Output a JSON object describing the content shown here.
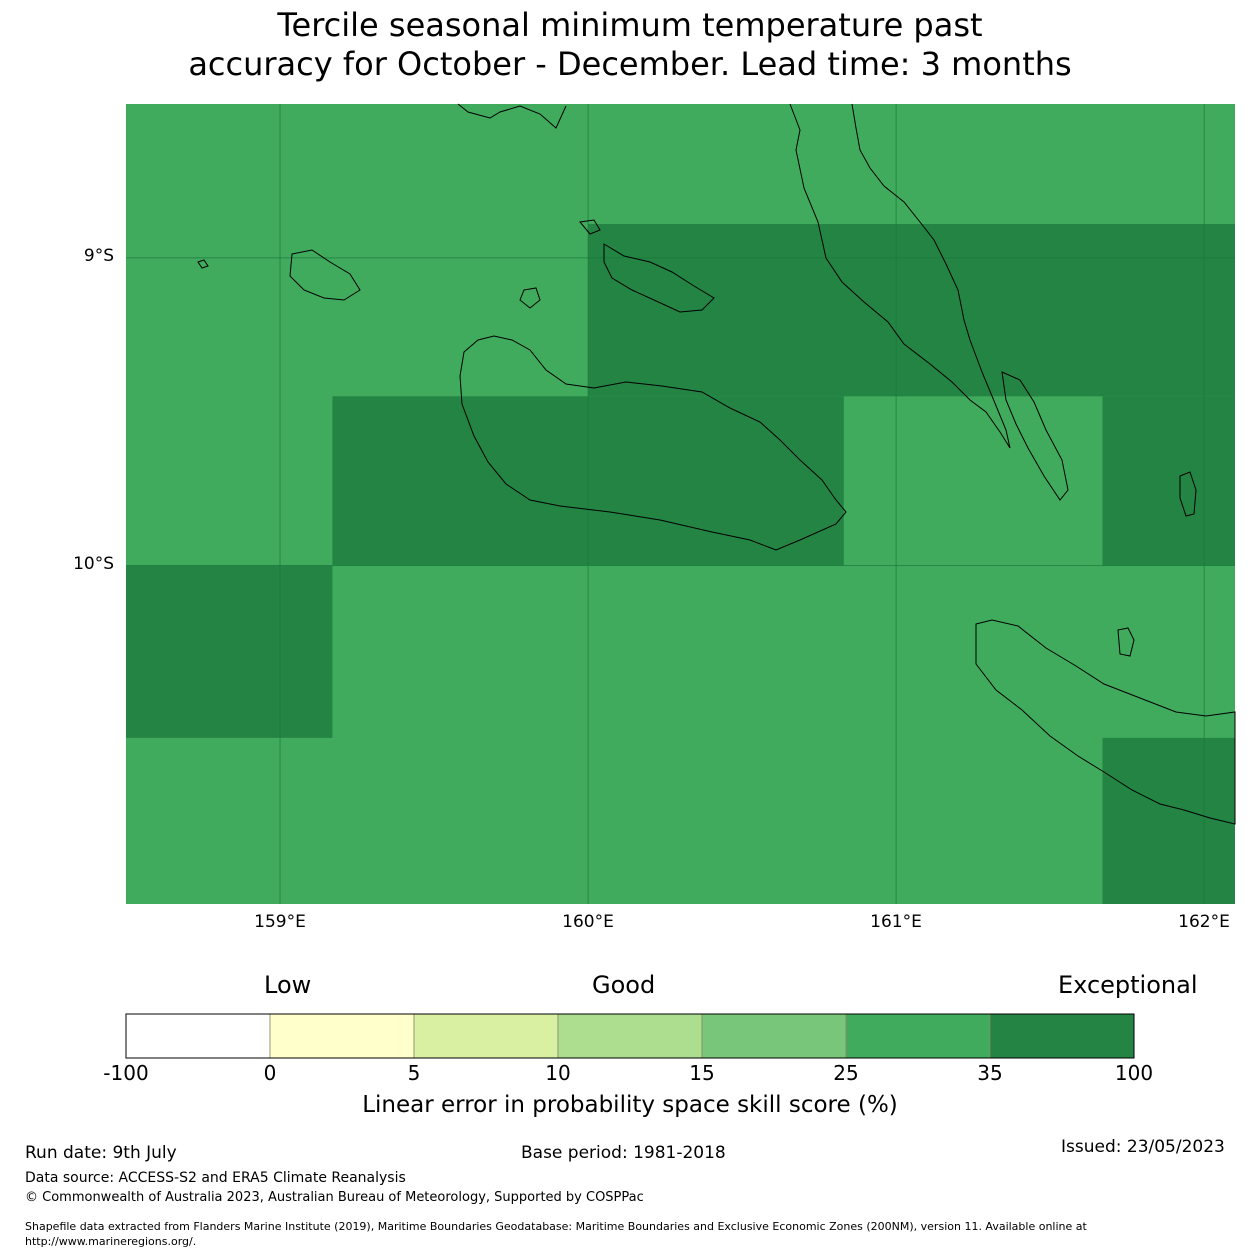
{
  "title": {
    "line1": "Tercile seasonal minimum temperature past",
    "line2": "accuracy for October - December. Lead time: 3 months"
  },
  "map": {
    "lat_range": [
      -11.1,
      -8.5
    ],
    "lon_range": [
      158.5,
      162.1
    ],
    "lat_ticks": [
      {
        "value": -9,
        "label": "9°S"
      },
      {
        "value": -10,
        "label": "10°S"
      }
    ],
    "lon_ticks": [
      {
        "value": 159,
        "label": "159°E"
      },
      {
        "value": 160,
        "label": "160°E"
      },
      {
        "value": 161,
        "label": "161°E"
      },
      {
        "value": 162,
        "label": "162°E"
      }
    ],
    "background_category": "25-35",
    "background_color": "#41ab5d",
    "exceptional_cells": [
      {
        "lon0": 160.0,
        "lon1": 162.1,
        "lat0": -8.89,
        "lat1": -9.45
      },
      {
        "lon0": 159.17,
        "lon1": 160.83,
        "lat0": -9.45,
        "lat1": -10.0
      },
      {
        "lon0": 161.67,
        "lon1": 162.1,
        "lat0": -9.45,
        "lat1": -10.0
      },
      {
        "lon0": 158.5,
        "lon1": 159.17,
        "lat0": -10.0,
        "lat1": -10.56
      },
      {
        "lon0": 161.67,
        "lon1": 162.1,
        "lat0": -10.56,
        "lat1": -11.1
      }
    ],
    "exceptional_color": "#238443"
  },
  "legend": {
    "categories": {
      "low": "Low",
      "good": "Good",
      "exceptional": "Exceptional"
    },
    "bins": [
      {
        "from": "-100",
        "to": "0",
        "color": "#ffffff"
      },
      {
        "from": "0",
        "to": "5",
        "color": "#ffffcc"
      },
      {
        "from": "5",
        "to": "10",
        "color": "#d9f0a3"
      },
      {
        "from": "10",
        "to": "15",
        "color": "#addd8e"
      },
      {
        "from": "15",
        "to": "25",
        "color": "#78c679"
      },
      {
        "from": "25",
        "to": "35",
        "color": "#41ab5d"
      },
      {
        "from": "35",
        "to": "100",
        "color": "#238443"
      }
    ],
    "tick_labels": [
      "-100",
      "0",
      "5",
      "10",
      "15",
      "25",
      "35",
      "100"
    ],
    "title": "Linear error in probability space skill score (%)"
  },
  "footer": {
    "run_date": "Run date: 9th July",
    "base_period": "Base period: 1981-2018",
    "issued": "Issued: 23/05/2023",
    "data_source": "Data source: ACCESS-S2 and ERA5 Climate Reanalysis",
    "copyright": "© Commonwealth of Australia 2023, Australian Bureau of Meteorology, Supported by COSPPac",
    "shapefile_line1": "Shapefile data extracted from Flanders Marine Institute (2019), Maritime Boundaries Geodatabase: Maritime Boundaries and Exclusive Economic Zones (200NM), version 11. Available online at",
    "shapefile_line2": "http://www.marineregions.org/."
  }
}
